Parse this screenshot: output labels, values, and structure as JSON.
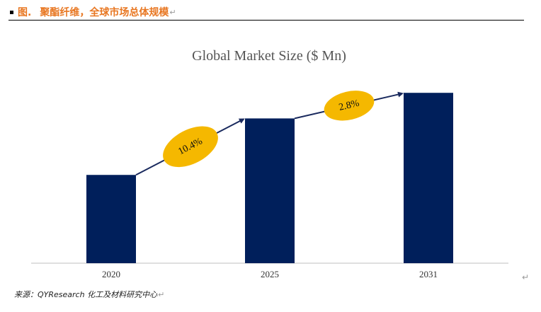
{
  "header": {
    "label": "图.",
    "title": "聚酯纤维，全球市场总体规模",
    "mark": "↵"
  },
  "chart_data": {
    "type": "bar",
    "title": "Global Market Size ($ Mn)",
    "categories": [
      "2020",
      "2025",
      "2031"
    ],
    "values": [
      100,
      164,
      193
    ],
    "ylim": [
      0,
      210
    ],
    "grid": false,
    "legend": "none",
    "bar_color": "#001f5b",
    "growth_annotations": [
      {
        "from": 0,
        "to": 1,
        "label": "10.4%"
      },
      {
        "from": 1,
        "to": 2,
        "label": "2.8%"
      }
    ],
    "annotation_color": "#f5b800",
    "arrow_color": "#1a2a5e"
  },
  "source": {
    "text": "来源：QYResearch 化工及材料研究中心",
    "mark": "↵"
  },
  "corner_mark": "↵"
}
